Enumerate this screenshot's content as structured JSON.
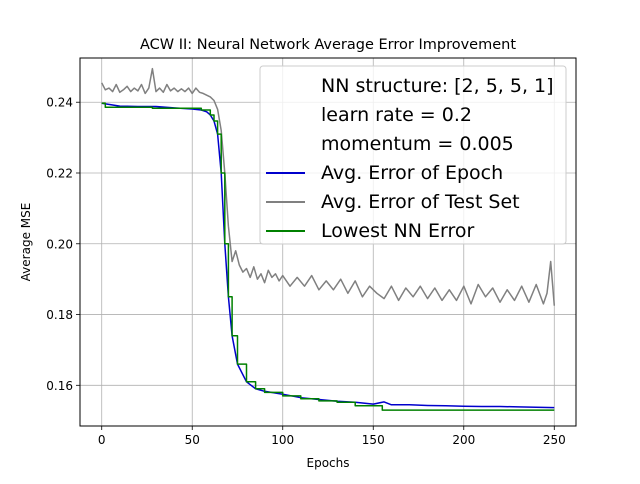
{
  "chart_data": {
    "type": "line",
    "title": "ACW II: Neural Network Average Error Improvement",
    "xlabel": "Epochs",
    "ylabel": "Average MSE",
    "xlim": [
      -12,
      262
    ],
    "ylim": [
      0.1485,
      0.2525
    ],
    "xticks": [
      0,
      50,
      100,
      150,
      200,
      250
    ],
    "xtick_labels": [
      "0",
      "50",
      "100",
      "150",
      "200",
      "250"
    ],
    "yticks": [
      0.16,
      0.18,
      0.2,
      0.22,
      0.24
    ],
    "ytick_labels": [
      "0.16",
      "0.18",
      "0.20",
      "0.22",
      "0.24"
    ],
    "grid": true,
    "legend_placement": "top-right",
    "legend_text_entries": [
      "NN structure: [2, 5, 5, 1]",
      "learn rate = 0.2",
      "momentum = 0.005"
    ],
    "series": [
      {
        "name": "Avg. Error of Epoch",
        "color": "#0000cc",
        "x": [
          0,
          10,
          20,
          30,
          40,
          50,
          55,
          58,
          60,
          62,
          64,
          66,
          68,
          70,
          72,
          75,
          80,
          85,
          90,
          100,
          110,
          120,
          130,
          140,
          150,
          156,
          160,
          170,
          180,
          190,
          200,
          210,
          220,
          230,
          240,
          250
        ],
        "y": [
          0.2397,
          0.2389,
          0.2388,
          0.2388,
          0.2384,
          0.2381,
          0.2378,
          0.2373,
          0.2364,
          0.2347,
          0.231,
          0.22,
          0.2,
          0.185,
          0.174,
          0.166,
          0.161,
          0.159,
          0.1583,
          0.1575,
          0.1565,
          0.156,
          0.1555,
          0.1552,
          0.1547,
          0.1553,
          0.1545,
          0.1545,
          0.1543,
          0.1542,
          0.1541,
          0.154,
          0.154,
          0.1539,
          0.1538,
          0.1537
        ]
      },
      {
        "name": "Avg. Error of Test Set",
        "color": "#808080",
        "x": [
          0,
          2,
          4,
          6,
          8,
          10,
          12,
          14,
          16,
          18,
          20,
          22,
          24,
          26,
          28,
          30,
          32,
          34,
          36,
          38,
          40,
          42,
          44,
          46,
          48,
          50,
          52,
          54,
          56,
          58,
          60,
          62,
          64,
          66,
          68,
          70,
          72,
          74,
          76,
          78,
          80,
          82,
          84,
          86,
          88,
          90,
          92,
          94,
          96,
          98,
          100,
          104,
          108,
          112,
          116,
          120,
          124,
          128,
          132,
          136,
          140,
          144,
          148,
          152,
          156,
          160,
          164,
          168,
          172,
          176,
          180,
          184,
          188,
          192,
          196,
          200,
          204,
          208,
          212,
          216,
          220,
          224,
          228,
          232,
          236,
          240,
          244,
          246,
          248,
          250
        ],
        "y": [
          0.2455,
          0.2435,
          0.244,
          0.243,
          0.245,
          0.2428,
          0.2435,
          0.2445,
          0.243,
          0.244,
          0.2432,
          0.245,
          0.2425,
          0.244,
          0.2495,
          0.243,
          0.244,
          0.2428,
          0.245,
          0.2432,
          0.244,
          0.243,
          0.2438,
          0.243,
          0.244,
          0.2425,
          0.244,
          0.2428,
          0.2425,
          0.242,
          0.2415,
          0.2405,
          0.238,
          0.232,
          0.22,
          0.205,
          0.195,
          0.198,
          0.194,
          0.192,
          0.193,
          0.1905,
          0.1935,
          0.19,
          0.1915,
          0.189,
          0.1925,
          0.1905,
          0.1915,
          0.1895,
          0.191,
          0.188,
          0.1905,
          0.188,
          0.191,
          0.187,
          0.1895,
          0.187,
          0.19,
          0.186,
          0.1895,
          0.185,
          0.188,
          0.186,
          0.1845,
          0.188,
          0.184,
          0.1875,
          0.185,
          0.188,
          0.1845,
          0.1875,
          0.184,
          0.187,
          0.184,
          0.188,
          0.183,
          0.1885,
          0.185,
          0.1875,
          0.1835,
          0.187,
          0.184,
          0.188,
          0.1835,
          0.1885,
          0.183,
          0.186,
          0.195,
          0.1825
        ]
      },
      {
        "name": "Lowest NN Error",
        "color": "#008000",
        "x": [
          0,
          2,
          2,
          28,
          28,
          55,
          55,
          60,
          60,
          62,
          62,
          64,
          64,
          66,
          66,
          68,
          68,
          70,
          70,
          72,
          72,
          75,
          75,
          80,
          80,
          85,
          85,
          90,
          90,
          100,
          100,
          110,
          110,
          120,
          120,
          130,
          130,
          140,
          140,
          155,
          155,
          250
        ],
        "y": [
          0.2397,
          0.2397,
          0.2386,
          0.2386,
          0.2383,
          0.2383,
          0.2378,
          0.2378,
          0.2364,
          0.2364,
          0.2347,
          0.2347,
          0.231,
          0.231,
          0.22,
          0.22,
          0.2,
          0.2,
          0.185,
          0.185,
          0.174,
          0.174,
          0.166,
          0.166,
          0.161,
          0.161,
          0.159,
          0.159,
          0.158,
          0.158,
          0.157,
          0.157,
          0.1562,
          0.1562,
          0.1556,
          0.1556,
          0.1552,
          0.1552,
          0.1542,
          0.1542,
          0.153,
          0.153
        ]
      }
    ]
  }
}
